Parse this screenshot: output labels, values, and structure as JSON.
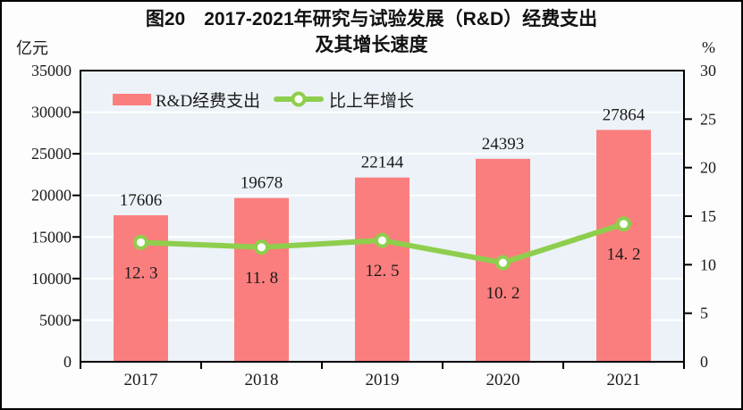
{
  "figure": {
    "title_line1": "图20　2017-2021年研究与试验发展（R&D）经费支出",
    "title_line2": "及其增长速度",
    "left_unit": "亿元",
    "right_unit": "%"
  },
  "colors": {
    "bar": "#FB7E7E",
    "line": "#8FCE4D",
    "marker_fill": "#FFFFFF",
    "plot_bg": "#ECF2F8",
    "grid": "#FFFFFF",
    "axis": "#000000",
    "text": "#1A1A1A",
    "page_bg": "#FDFDFD"
  },
  "chart_data": {
    "type": "bar",
    "combo": "bar+line",
    "title": "图20　2017-2021年研究与试验发展（R&D）经费支出及其增长速度",
    "categories": [
      "2017",
      "2018",
      "2019",
      "2020",
      "2021"
    ],
    "series": [
      {
        "name": "R&D经费支出",
        "type": "bar",
        "axis": "left",
        "values": [
          17606,
          19678,
          22144,
          24393,
          27864
        ],
        "labels": [
          "17606",
          "19678",
          "22144",
          "24393",
          "27864"
        ]
      },
      {
        "name": "比上年增长",
        "type": "line",
        "axis": "right",
        "values": [
          12.3,
          11.8,
          12.5,
          10.2,
          14.2
        ],
        "labels": [
          "12. 3",
          "11. 8",
          "12. 5",
          "10. 2",
          "14. 2"
        ]
      }
    ],
    "left_axis": {
      "unit": "亿元",
      "min": 0,
      "max": 35000,
      "step": 5000,
      "tick_labels": [
        "0",
        "5000",
        "10000",
        "15000",
        "20000",
        "25000",
        "30000",
        "35000"
      ]
    },
    "right_axis": {
      "unit": "%",
      "min": 0,
      "max": 30,
      "step": 5,
      "tick_labels": [
        "0",
        "5",
        "10",
        "15",
        "20",
        "25",
        "30"
      ]
    },
    "grid": true,
    "legend_position": "top-inside"
  }
}
